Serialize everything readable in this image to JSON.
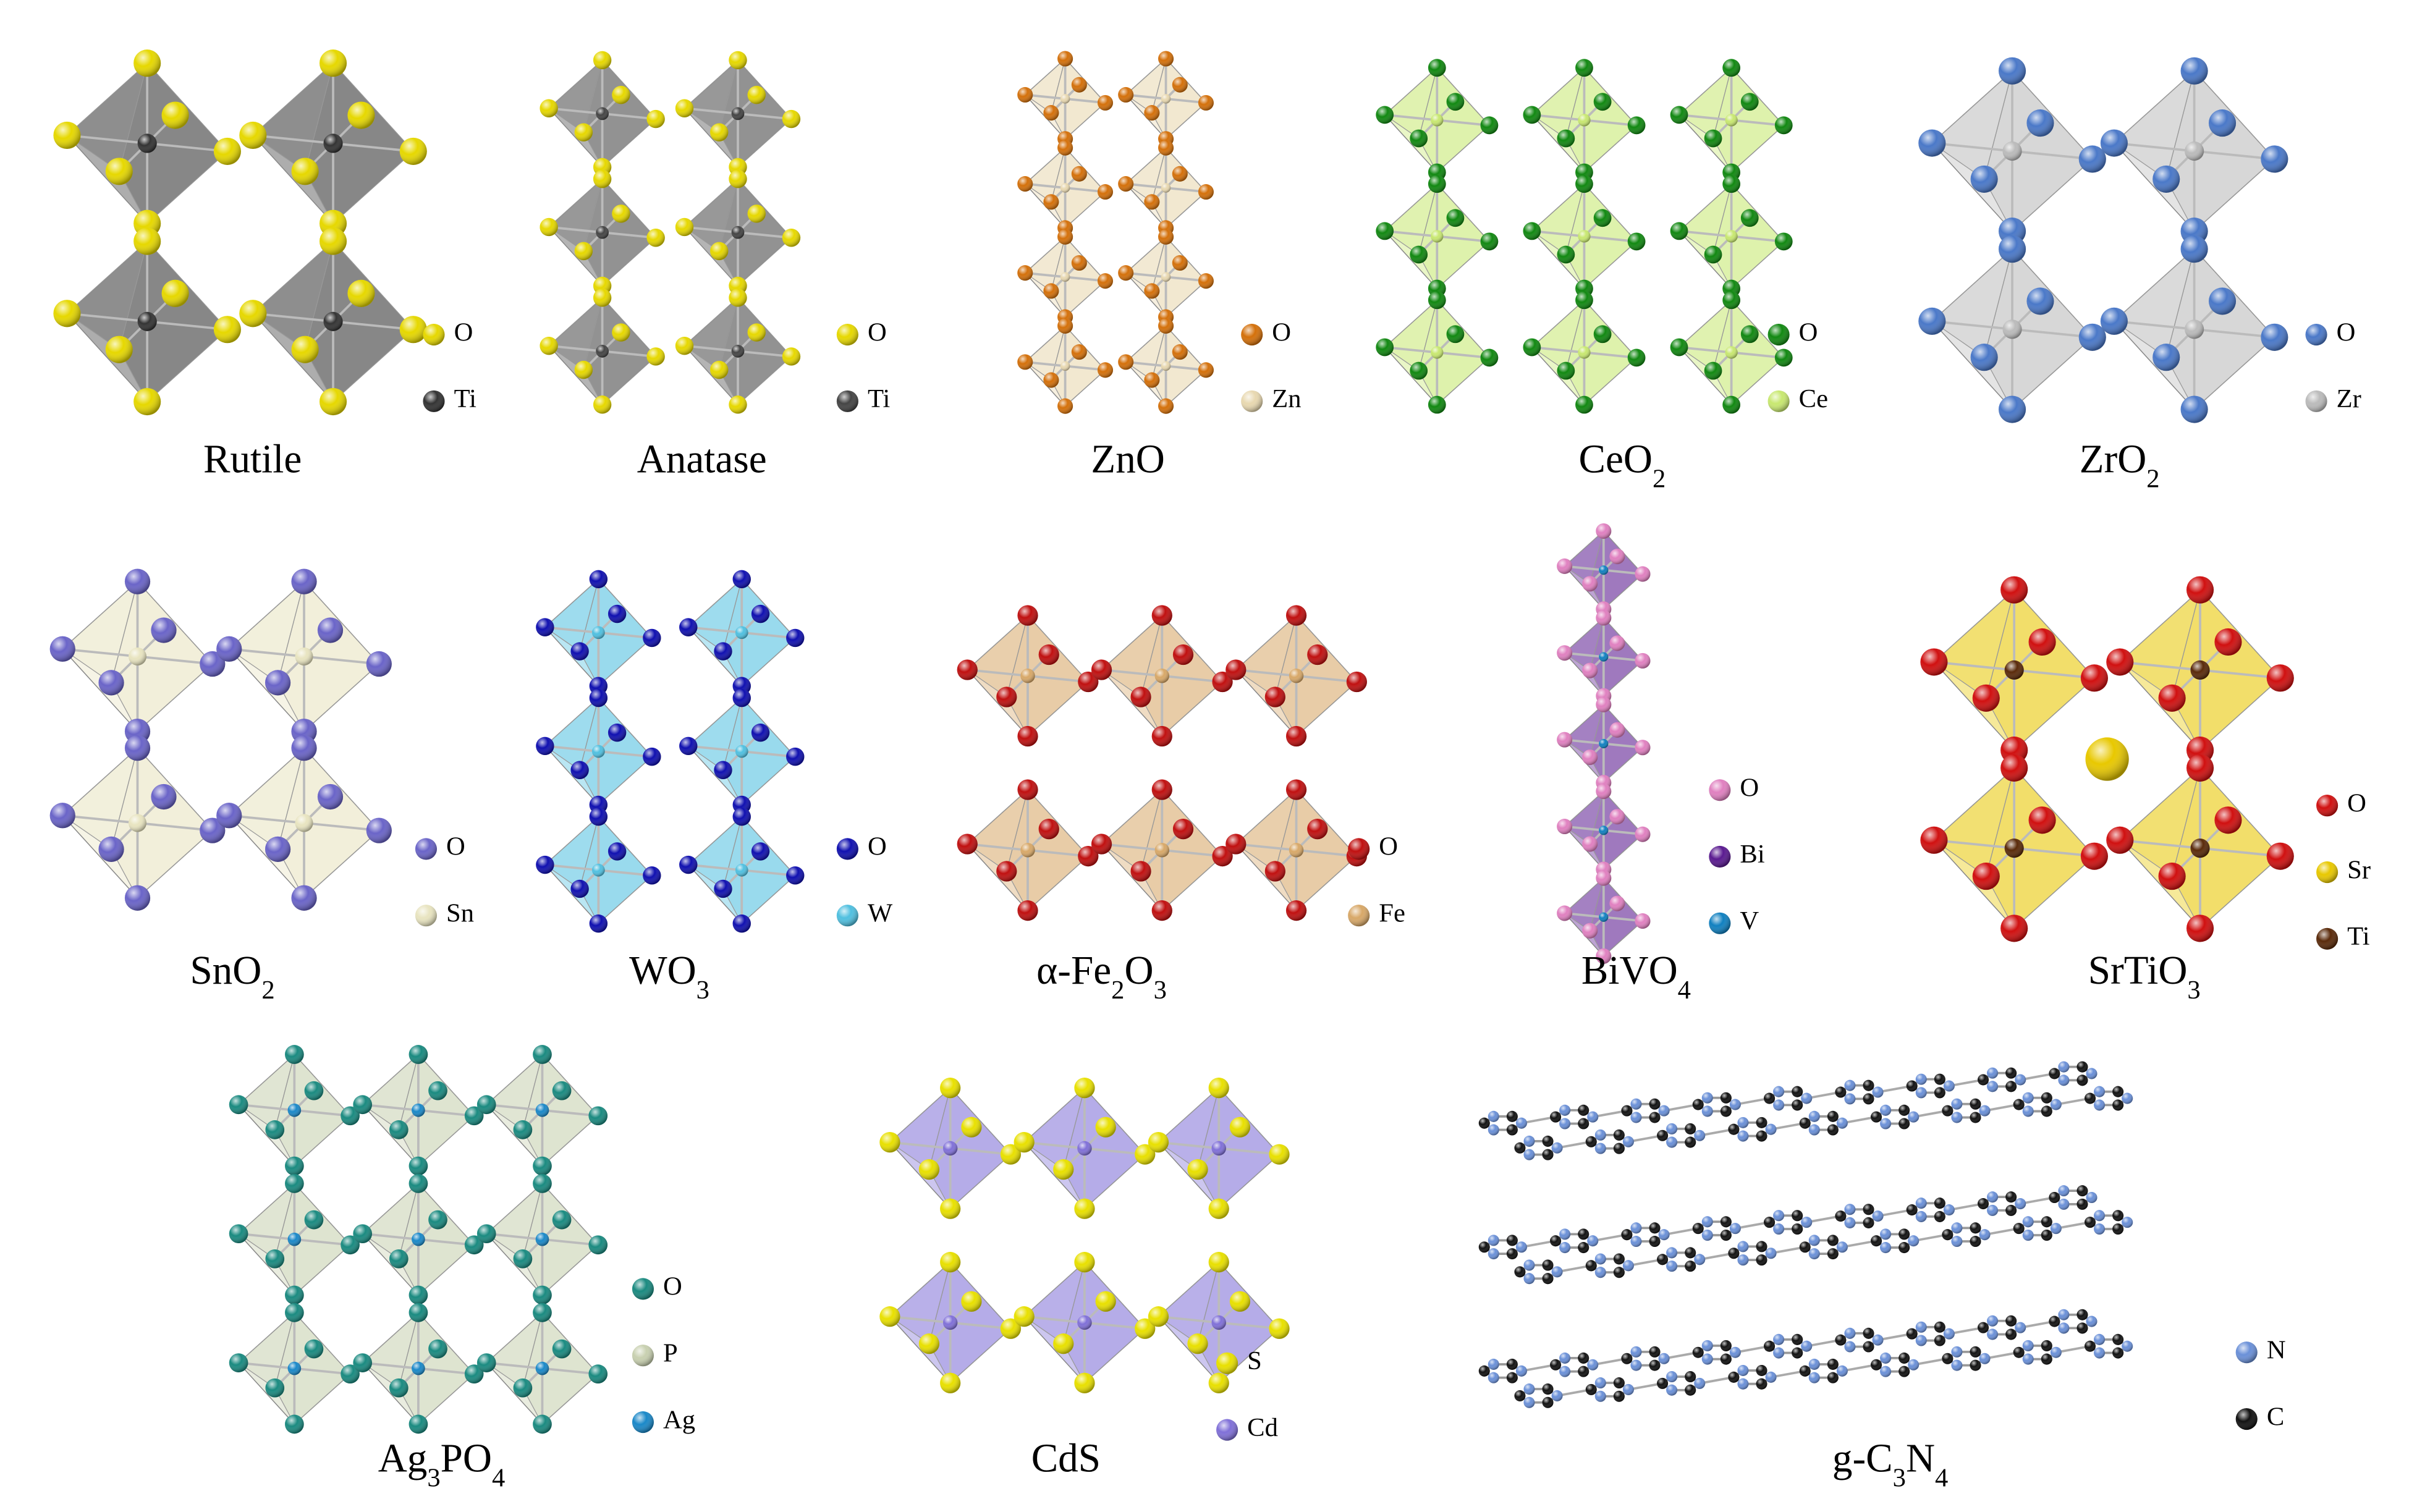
{
  "structures": [
    {
      "label": [
        "Rutile"
      ],
      "legend": [
        {
          "symbol": "O",
          "color": "#e6d800"
        },
        {
          "symbol": "Ti",
          "color": "#333333"
        }
      ]
    },
    {
      "label": [
        "Anatase"
      ],
      "legend": [
        {
          "symbol": "O",
          "color": "#e6d800"
        },
        {
          "symbol": "Ti",
          "color": "#444444"
        }
      ]
    },
    {
      "label": [
        "ZnO"
      ],
      "legend": [
        {
          "symbol": "O",
          "color": "#d4700a"
        },
        {
          "symbol": "Zn",
          "color": "#e8d8b0"
        }
      ]
    },
    {
      "label": [
        "CeO",
        "2"
      ],
      "legend": [
        {
          "symbol": "O",
          "color": "#118811"
        },
        {
          "symbol": "Ce",
          "color": "#c8e870"
        }
      ]
    },
    {
      "label": [
        "ZrO",
        "2"
      ],
      "legend": [
        {
          "symbol": "O",
          "color": "#4a78c8"
        },
        {
          "symbol": "Zr",
          "color": "#bbbbbb"
        }
      ]
    },
    {
      "label": [
        "SnO",
        "2"
      ],
      "legend": [
        {
          "symbol": "O",
          "color": "#6a64c8"
        },
        {
          "symbol": "Sn",
          "color": "#e8e4c0"
        }
      ]
    },
    {
      "label": [
        "WO",
        "3"
      ],
      "legend": [
        {
          "symbol": "O",
          "color": "#1010b0"
        },
        {
          "symbol": "W",
          "color": "#50c0e0"
        }
      ]
    },
    {
      "label": [
        "α-Fe",
        "2",
        "O",
        "3"
      ],
      "legend": [
        {
          "symbol": "O",
          "color": "#c01010"
        },
        {
          "symbol": "Fe",
          "color": "#d8a868"
        }
      ]
    },
    {
      "label": [
        "BiVO",
        "4"
      ],
      "legend": [
        {
          "symbol": "O",
          "color": "#e080c0"
        },
        {
          "symbol": "Bi",
          "color": "#5a1a90"
        },
        {
          "symbol": "V",
          "color": "#1080c0"
        }
      ]
    },
    {
      "label": [
        "SrTiO",
        "3"
      ],
      "legend": [
        {
          "symbol": "O",
          "color": "#d01010"
        },
        {
          "symbol": "Sr",
          "color": "#e8c800"
        },
        {
          "symbol": "Ti",
          "color": "#5a2a0a"
        }
      ]
    },
    {
      "label": [
        "Ag",
        "3",
        "PO",
        "4"
      ],
      "legend": [
        {
          "symbol": "O",
          "color": "#1a8a80"
        },
        {
          "symbol": "P",
          "color": "#c8d0b0"
        },
        {
          "symbol": "Ag",
          "color": "#1a88c8"
        }
      ]
    },
    {
      "label": [
        "CdS"
      ],
      "legend": [
        {
          "symbol": "S",
          "color": "#e8e000"
        },
        {
          "symbol": "Cd",
          "color": "#8070d8"
        }
      ]
    },
    {
      "label": [
        "g-C",
        "3",
        "N",
        "4"
      ],
      "legend": [
        {
          "symbol": "N",
          "color": "#6a90d8"
        },
        {
          "symbol": "C",
          "color": "#111111"
        }
      ]
    }
  ]
}
